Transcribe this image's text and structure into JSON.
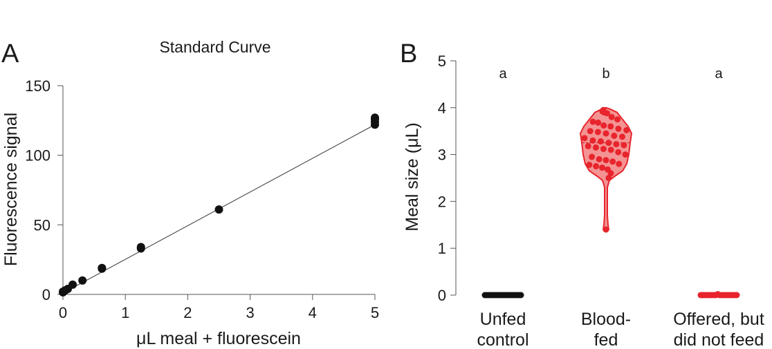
{
  "panels": {
    "a_label": "A",
    "b_label": "B"
  },
  "colors": {
    "points_a": "#111111",
    "fit_line": "#333333",
    "axis": "#555555",
    "blood_fed": "#e8242c",
    "violin_fill": "#f28080",
    "unfed": "#111111"
  },
  "chart_data": [
    {
      "type": "scatter",
      "title": "Standard Curve",
      "xlabel": "μL  meal + fluorescein",
      "ylabel": "Fluorescence signal",
      "xlim": [
        0,
        5
      ],
      "ylim": [
        0,
        150
      ],
      "xticks": [
        "0",
        "1",
        "2",
        "3",
        "4",
        "5"
      ],
      "yticks": [
        "0",
        "50",
        "100",
        "150"
      ],
      "grid": false,
      "points": [
        {
          "x": 0,
          "y": 2
        },
        {
          "x": 0,
          "y": 1.5
        },
        {
          "x": 0.0195,
          "y": 2.5
        },
        {
          "x": 0.039,
          "y": 3
        },
        {
          "x": 0.078,
          "y": 4
        },
        {
          "x": 0.156,
          "y": 7
        },
        {
          "x": 0.3125,
          "y": 10
        },
        {
          "x": 0.625,
          "y": 18.5
        },
        {
          "x": 0.625,
          "y": 19
        },
        {
          "x": 1.25,
          "y": 33
        },
        {
          "x": 1.25,
          "y": 34
        },
        {
          "x": 2.5,
          "y": 61
        },
        {
          "x": 5,
          "y": 122
        },
        {
          "x": 5,
          "y": 124
        },
        {
          "x": 5,
          "y": 126
        },
        {
          "x": 5,
          "y": 127
        }
      ],
      "fit_line": {
        "x": [
          0,
          5
        ],
        "y": [
          1,
          122
        ]
      }
    },
    {
      "type": "violin",
      "ylabel": "Meal size (μL)",
      "ylim": [
        0,
        5
      ],
      "yticks": [
        "0",
        "1",
        "2",
        "3",
        "4",
        "5"
      ],
      "categories": [
        {
          "lines": [
            "Unfed",
            "control"
          ],
          "letter": "a"
        },
        {
          "lines": [
            "Blood-",
            "fed"
          ],
          "letter": "b"
        },
        {
          "lines": [
            "Offered, but",
            "did not feed"
          ],
          "letter": "a"
        }
      ],
      "unfed_values": [
        0,
        0,
        0,
        0,
        0,
        0,
        0,
        0,
        0,
        0,
        0,
        0,
        0,
        0,
        0,
        0,
        0,
        0,
        0,
        0
      ],
      "offered_values": [
        0,
        0,
        0,
        0,
        0,
        0,
        0,
        0,
        0,
        0.02,
        0,
        0,
        0,
        0,
        0,
        0,
        0,
        0,
        0,
        0
      ],
      "blood_fed_median": 3.25,
      "blood_fed_values": [
        3.95,
        3.92,
        3.9,
        3.88,
        3.8,
        3.75,
        3.7,
        3.68,
        3.62,
        3.6,
        3.55,
        3.52,
        3.5,
        3.48,
        3.45,
        3.4,
        3.38,
        3.35,
        3.3,
        3.28,
        3.25,
        3.22,
        3.2,
        3.18,
        3.15,
        3.12,
        3.1,
        3.05,
        3.0,
        2.95,
        2.9,
        2.88,
        2.85,
        2.8,
        2.78,
        2.75,
        2.72,
        2.68,
        2.6,
        2.5,
        1.4
      ]
    }
  ]
}
